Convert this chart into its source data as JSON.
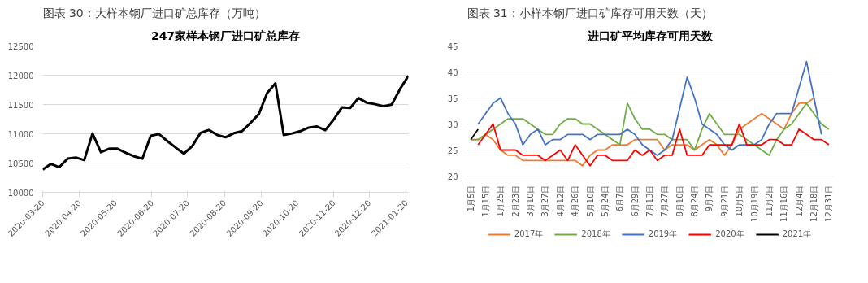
{
  "chart_data": [
    {
      "type": "line",
      "title": "图表 30：大样本钢厂进口矿总库存（万吨）",
      "subtitle": "247家样本钢厂进口矿总库存",
      "x": [
        "2020-03-20",
        "2020-03-27",
        "2020-04-03",
        "2020-04-10",
        "2020-04-17",
        "2020-04-24",
        "2020-05-01",
        "2020-05-08",
        "2020-05-15",
        "2020-05-22",
        "2020-05-29",
        "2020-06-05",
        "2020-06-12",
        "2020-06-19",
        "2020-06-26",
        "2020-07-03",
        "2020-07-10",
        "2020-07-17",
        "2020-07-24",
        "2020-07-31",
        "2020-08-07",
        "2020-08-14",
        "2020-08-21",
        "2020-08-28",
        "2020-09-04",
        "2020-09-11",
        "2020-09-18",
        "2020-09-25",
        "2020-10-02",
        "2020-10-09",
        "2020-10-16",
        "2020-10-23",
        "2020-10-30",
        "2020-11-06",
        "2020-11-13",
        "2020-11-20",
        "2020-11-27",
        "2020-12-04",
        "2020-12-11",
        "2020-12-18",
        "2020-12-25",
        "2021-01-01",
        "2021-01-08",
        "2021-01-15",
        "2021-01-22"
      ],
      "values": [
        10390,
        10485,
        10430,
        10575,
        10595,
        10550,
        11005,
        10685,
        10745,
        10745,
        10675,
        10615,
        10575,
        10965,
        10995,
        10875,
        10765,
        10660,
        10790,
        11015,
        11065,
        10980,
        10940,
        11010,
        11045,
        11185,
        11335,
        11695,
        11860,
        10980,
        11005,
        11045,
        11105,
        11125,
        11060,
        11240,
        11450,
        11440,
        11610,
        11530,
        11505,
        11470,
        11500,
        11765,
        11990
      ],
      "color": "#000000",
      "xlim": [
        "2020-03-20",
        "2021-01-22"
      ],
      "xticks": [
        "2020-03-20",
        "2020-04-20",
        "2020-05-20",
        "2020-06-20",
        "2020-07-20",
        "2020-08-20",
        "2020-09-20",
        "2020-10-20",
        "2020-11-20",
        "2020-12-20",
        "2021-01-20"
      ],
      "ylim": [
        10000,
        12500
      ],
      "yticks": [
        10000,
        10500,
        11000,
        11500,
        12000,
        12500
      ],
      "grid": "y"
    },
    {
      "type": "line",
      "title": "图表 31：小样本钢厂进口矿库存可用天数（天）",
      "subtitle": "进口矿平均库存可用天数",
      "categories": [
        "1月5日",
        null,
        "1月15日",
        null,
        "1月25日",
        null,
        "2月23日",
        null,
        "3月10日",
        null,
        "3月27日",
        null,
        "4月12日",
        null,
        "4月26日",
        null,
        "5月10日",
        null,
        "5月24日",
        null,
        "6月7日",
        null,
        "6月29日",
        null,
        "7月13日",
        null,
        "7月27日",
        null,
        "8月10日",
        null,
        "8月24日",
        null,
        "9月7日",
        null,
        "9月21日",
        null,
        "10月5日",
        null,
        "10月19日",
        null,
        "11月2日",
        null,
        "11月16日",
        null,
        "12月4日",
        null,
        "12月18日",
        null,
        "12月31日"
      ],
      "series": [
        {
          "name": "2017年",
          "color": "#ed7d31",
          "values": [
            27,
            27,
            28,
            27,
            25,
            24,
            24,
            23,
            23,
            23,
            23,
            23,
            23,
            23,
            23,
            22,
            24,
            25,
            25,
            26,
            26,
            26,
            27,
            27,
            27,
            27,
            25,
            26,
            26,
            26,
            25,
            26,
            27,
            26,
            24,
            26,
            29,
            30,
            31,
            32,
            31,
            30,
            29,
            32,
            34,
            34,
            35,
            null,
            null
          ]
        },
        {
          "name": "2018年",
          "color": "#70ad47",
          "values": [
            27,
            27,
            28,
            29,
            30,
            31,
            31,
            31,
            30,
            29,
            28,
            28,
            30,
            31,
            31,
            30,
            30,
            29,
            28,
            27,
            26,
            34,
            31,
            29,
            29,
            28,
            28,
            27,
            27,
            27,
            25,
            29,
            32,
            30,
            28,
            28,
            28,
            27,
            26,
            25,
            24,
            27,
            29,
            30,
            32,
            34,
            32,
            30,
            29
          ]
        },
        {
          "name": "2019年",
          "color": "#4472c4",
          "values": [
            null,
            30,
            32,
            34,
            35,
            32,
            30,
            26,
            28,
            29,
            26,
            27,
            27,
            28,
            28,
            28,
            27,
            28,
            28,
            28,
            28,
            29,
            28,
            26,
            25,
            24,
            25,
            27,
            33,
            39,
            35,
            30,
            29,
            28,
            26,
            25,
            26,
            26,
            26,
            27,
            30,
            32,
            32,
            32,
            37,
            42,
            35,
            28,
            null
          ]
        },
        {
          "name": "2020年",
          "color": "#ff0000",
          "values": [
            null,
            26,
            28,
            30,
            25,
            25,
            25,
            24,
            24,
            24,
            23,
            24,
            25,
            23,
            26,
            24,
            22,
            24,
            24,
            23,
            23,
            23,
            25,
            24,
            25,
            23,
            24,
            24,
            29,
            24,
            24,
            24,
            26,
            26,
            26,
            26,
            30,
            26,
            26,
            26,
            27,
            27,
            26,
            26,
            29,
            28,
            27,
            27,
            26
          ]
        },
        {
          "name": "2021年",
          "color": "#000000",
          "values": [
            27,
            29,
            null,
            null,
            null,
            null,
            null,
            null,
            null,
            null,
            null,
            null,
            null,
            null,
            null,
            null,
            null,
            null,
            null,
            null,
            null,
            null,
            null,
            null,
            null,
            null,
            null,
            null,
            null,
            null,
            null,
            null,
            null,
            null,
            null,
            null,
            null,
            null,
            null,
            null,
            null,
            null,
            null,
            null,
            null,
            null,
            null,
            null,
            null
          ]
        }
      ],
      "ylim": [
        20,
        45
      ],
      "yticks": [
        20,
        25,
        30,
        35,
        40,
        45
      ],
      "grid": "y",
      "legend": "bottom"
    }
  ]
}
